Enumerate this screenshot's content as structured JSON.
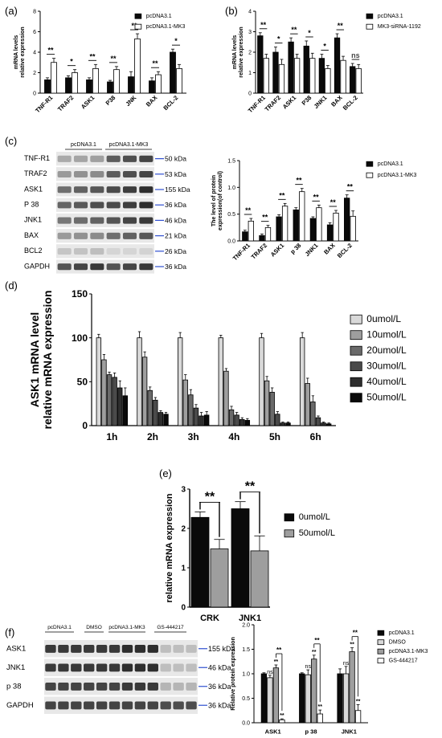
{
  "panel_labels": [
    "(a)",
    "(b)",
    "(c)",
    "(d)",
    "(e)",
    "(f)"
  ],
  "colors": {
    "black": "#0a0a0a",
    "white": "#ffffff",
    "blue": "#2f4fd0",
    "grey_light": "#d9d9d9",
    "grey_mid": "#9e9e9e",
    "grey_dark": "#6a6a6a",
    "grey_darker": "#4a4a4a",
    "grey_darkest": "#2e2e2e"
  },
  "chart_data": [
    {
      "panel": "a",
      "type": "bar",
      "categories": [
        "TNF-R1",
        "TRAF2",
        "ASK1",
        "P38",
        "JNK",
        "BAX",
        "BCL-2"
      ],
      "ylabel": "mRNA levels\nrelative expression",
      "ylim": [
        0,
        8
      ],
      "yticks": [
        0,
        2,
        4,
        6,
        8
      ],
      "series": [
        {
          "name": "pcDNA3.1",
          "values": [
            1.3,
            1.5,
            1.3,
            1.1,
            1.6,
            1.2,
            4.0
          ],
          "errors": [
            0.2,
            0.2,
            0.2,
            0.15,
            0.5,
            0.3,
            0.3
          ]
        },
        {
          "name": "pcDNA3.1-MK3",
          "values": [
            3.0,
            2.0,
            2.4,
            2.3,
            5.3,
            1.8,
            2.4
          ],
          "errors": [
            0.4,
            0.3,
            0.4,
            0.3,
            0.5,
            0.3,
            0.4
          ]
        }
      ],
      "significance": [
        "**",
        "*",
        "**",
        "**",
        "**",
        "**",
        "*"
      ],
      "legend": "top-right"
    },
    {
      "panel": "b",
      "type": "bar",
      "categories": [
        "TNF-R1",
        "TRAF2",
        "ASK1",
        "P38",
        "JNK1",
        "BAX",
        "BCL-2"
      ],
      "ylabel": "mRNA levels\nrelative expression",
      "ylim": [
        0,
        4
      ],
      "yticks": [
        0,
        1,
        2,
        3,
        4
      ],
      "series": [
        {
          "name": "pcDNA3.1",
          "values": [
            2.8,
            2.0,
            2.5,
            2.3,
            1.7,
            2.7,
            1.3
          ],
          "errors": [
            0.15,
            0.25,
            0.2,
            0.25,
            0.2,
            0.2,
            0.15
          ]
        },
        {
          "name": "MK3-siRNA-1192",
          "values": [
            1.7,
            1.4,
            1.7,
            1.7,
            1.2,
            1.6,
            1.2
          ],
          "errors": [
            0.2,
            0.25,
            0.2,
            0.25,
            0.15,
            0.2,
            0.2
          ]
        }
      ],
      "significance": [
        "**",
        "*",
        "**",
        "*",
        "*",
        "**",
        "ns"
      ],
      "legend": "top-right"
    },
    {
      "panel": "c",
      "type": "bar",
      "categories": [
        "TNF-R1",
        "TRAF2",
        "ASK1",
        "p 38",
        "JNK1",
        "BAX",
        "BCL-2"
      ],
      "ylabel": "The level of protein\nexpression(of control)",
      "ylim": [
        0,
        1.5
      ],
      "yticks": [
        0.0,
        0.5,
        1.0,
        1.5
      ],
      "series": [
        {
          "name": "pcDNA3.1",
          "values": [
            0.17,
            0.1,
            0.45,
            0.58,
            0.42,
            0.3,
            0.8
          ],
          "errors": [
            0.03,
            0.03,
            0.04,
            0.04,
            0.03,
            0.04,
            0.06
          ]
        },
        {
          "name": "pcDNA3.1-MK3",
          "values": [
            0.37,
            0.25,
            0.65,
            0.92,
            0.62,
            0.52,
            0.46
          ],
          "errors": [
            0.05,
            0.04,
            0.05,
            0.06,
            0.05,
            0.05,
            0.1
          ]
        }
      ],
      "significance": [
        "**",
        "**",
        "**",
        "**",
        "**",
        "**",
        "**"
      ],
      "legend": "top-right"
    },
    {
      "panel": "d",
      "type": "bar",
      "categories": [
        "1h",
        "2h",
        "3h",
        "4h",
        "5h",
        "6h"
      ],
      "ylabel": "ASK1 mRNA level\nrelative mRNA expression",
      "ylim": [
        0,
        150
      ],
      "yticks": [
        0,
        50,
        100,
        150
      ],
      "series": [
        {
          "name": "0umol/L",
          "values": [
            100,
            100,
            100,
            100,
            100,
            100
          ],
          "errors": [
            4,
            7,
            6,
            3,
            5,
            6
          ]
        },
        {
          "name": "10umol/L",
          "values": [
            75,
            78,
            52,
            62,
            51,
            48
          ],
          "errors": [
            6,
            6,
            6,
            3,
            5,
            6
          ]
        },
        {
          "name": "20umol/L",
          "values": [
            58,
            40,
            35,
            18,
            38,
            27
          ],
          "errors": [
            3,
            4,
            6,
            4,
            5,
            7
          ]
        },
        {
          "name": "30umol/L",
          "values": [
            55,
            29,
            20,
            12,
            13,
            9
          ],
          "errors": [
            5,
            3,
            4,
            3,
            3,
            2
          ]
        },
        {
          "name": "40umol/L",
          "values": [
            43,
            15,
            11,
            7,
            3,
            3
          ],
          "errors": [
            8,
            2,
            4,
            2,
            1,
            1
          ]
        },
        {
          "name": "50umol/L",
          "values": [
            34,
            13,
            12,
            6,
            3,
            2
          ],
          "errors": [
            9,
            2,
            4,
            2,
            1,
            1
          ]
        }
      ],
      "legend": "right"
    },
    {
      "panel": "e",
      "type": "bar",
      "categories": [
        "CRK",
        "JNK1"
      ],
      "ylabel": "relative mRNA expression",
      "ylim": [
        0,
        3
      ],
      "yticks": [
        0,
        1,
        2,
        3
      ],
      "series": [
        {
          "name": "0umol/L",
          "values": [
            2.28,
            2.5
          ],
          "errors": [
            0.14,
            0.18
          ]
        },
        {
          "name": "50umol/L",
          "values": [
            1.48,
            1.43
          ],
          "errors": [
            0.24,
            0.38
          ]
        }
      ],
      "significance": [
        "**",
        "**"
      ],
      "legend": "top-right"
    },
    {
      "panel": "f",
      "type": "bar",
      "categories": [
        "ASK1",
        "p 38",
        "JNK1"
      ],
      "ylabel": "Relative protein expression",
      "ylim": [
        0,
        2.0
      ],
      "yticks": [
        0.0,
        0.5,
        1.0,
        1.5,
        2.0
      ],
      "series": [
        {
          "name": "pcDNA3.1",
          "values": [
            1.0,
            1.0,
            1.0
          ],
          "errors": [
            0.02,
            0.02,
            0.1
          ]
        },
        {
          "name": "DMSO",
          "values": [
            0.92,
            0.98,
            1.0
          ],
          "errors": [
            0.05,
            0.1,
            0.15
          ]
        },
        {
          "name": "pcDNA3.1-MK3",
          "values": [
            1.12,
            1.3,
            1.45
          ],
          "errors": [
            0.06,
            0.08,
            0.08
          ]
        },
        {
          "name": "GS-444217",
          "values": [
            0.06,
            0.18,
            0.25
          ],
          "errors": [
            0.02,
            0.08,
            0.12
          ]
        }
      ],
      "marks": [
        [
          "",
          "ns",
          "**",
          "**"
        ],
        [
          "",
          "ns",
          "**",
          "**"
        ],
        [
          "",
          "ns",
          "**",
          "**"
        ]
      ],
      "top_marks": [
        "**",
        "**",
        "**"
      ],
      "legend": "right"
    }
  ],
  "blots": {
    "c": {
      "group_labels": [
        "pcDNA3.1",
        "pcDNA3.1-MK3"
      ],
      "rows": [
        {
          "protein": "TNF-R1",
          "size": "50 kDa"
        },
        {
          "protein": "TRAF2",
          "size": "53 kDa"
        },
        {
          "protein": "ASK1",
          "size": "155 kDa"
        },
        {
          "protein": "P 38",
          "size": "36 kDa"
        },
        {
          "protein": "JNK1",
          "size": "46 kDa"
        },
        {
          "protein": "BAX",
          "size": "21 kDa"
        },
        {
          "protein": "BCL2",
          "size": "26 kDa"
        },
        {
          "protein": "GAPDH",
          "size": "36 kDa"
        }
      ]
    },
    "f": {
      "group_labels": [
        "pcDNA3.1",
        "DMSO",
        "pcDNA3.1-MK3",
        "GS-444217"
      ],
      "rows": [
        {
          "protein": "ASK1",
          "size": "155 kDa"
        },
        {
          "protein": "JNK1",
          "size": "46 kDa"
        },
        {
          "protein": "p 38",
          "size": "36 kDa"
        },
        {
          "protein": "GAPDH",
          "size": "36 kDa"
        }
      ]
    }
  }
}
